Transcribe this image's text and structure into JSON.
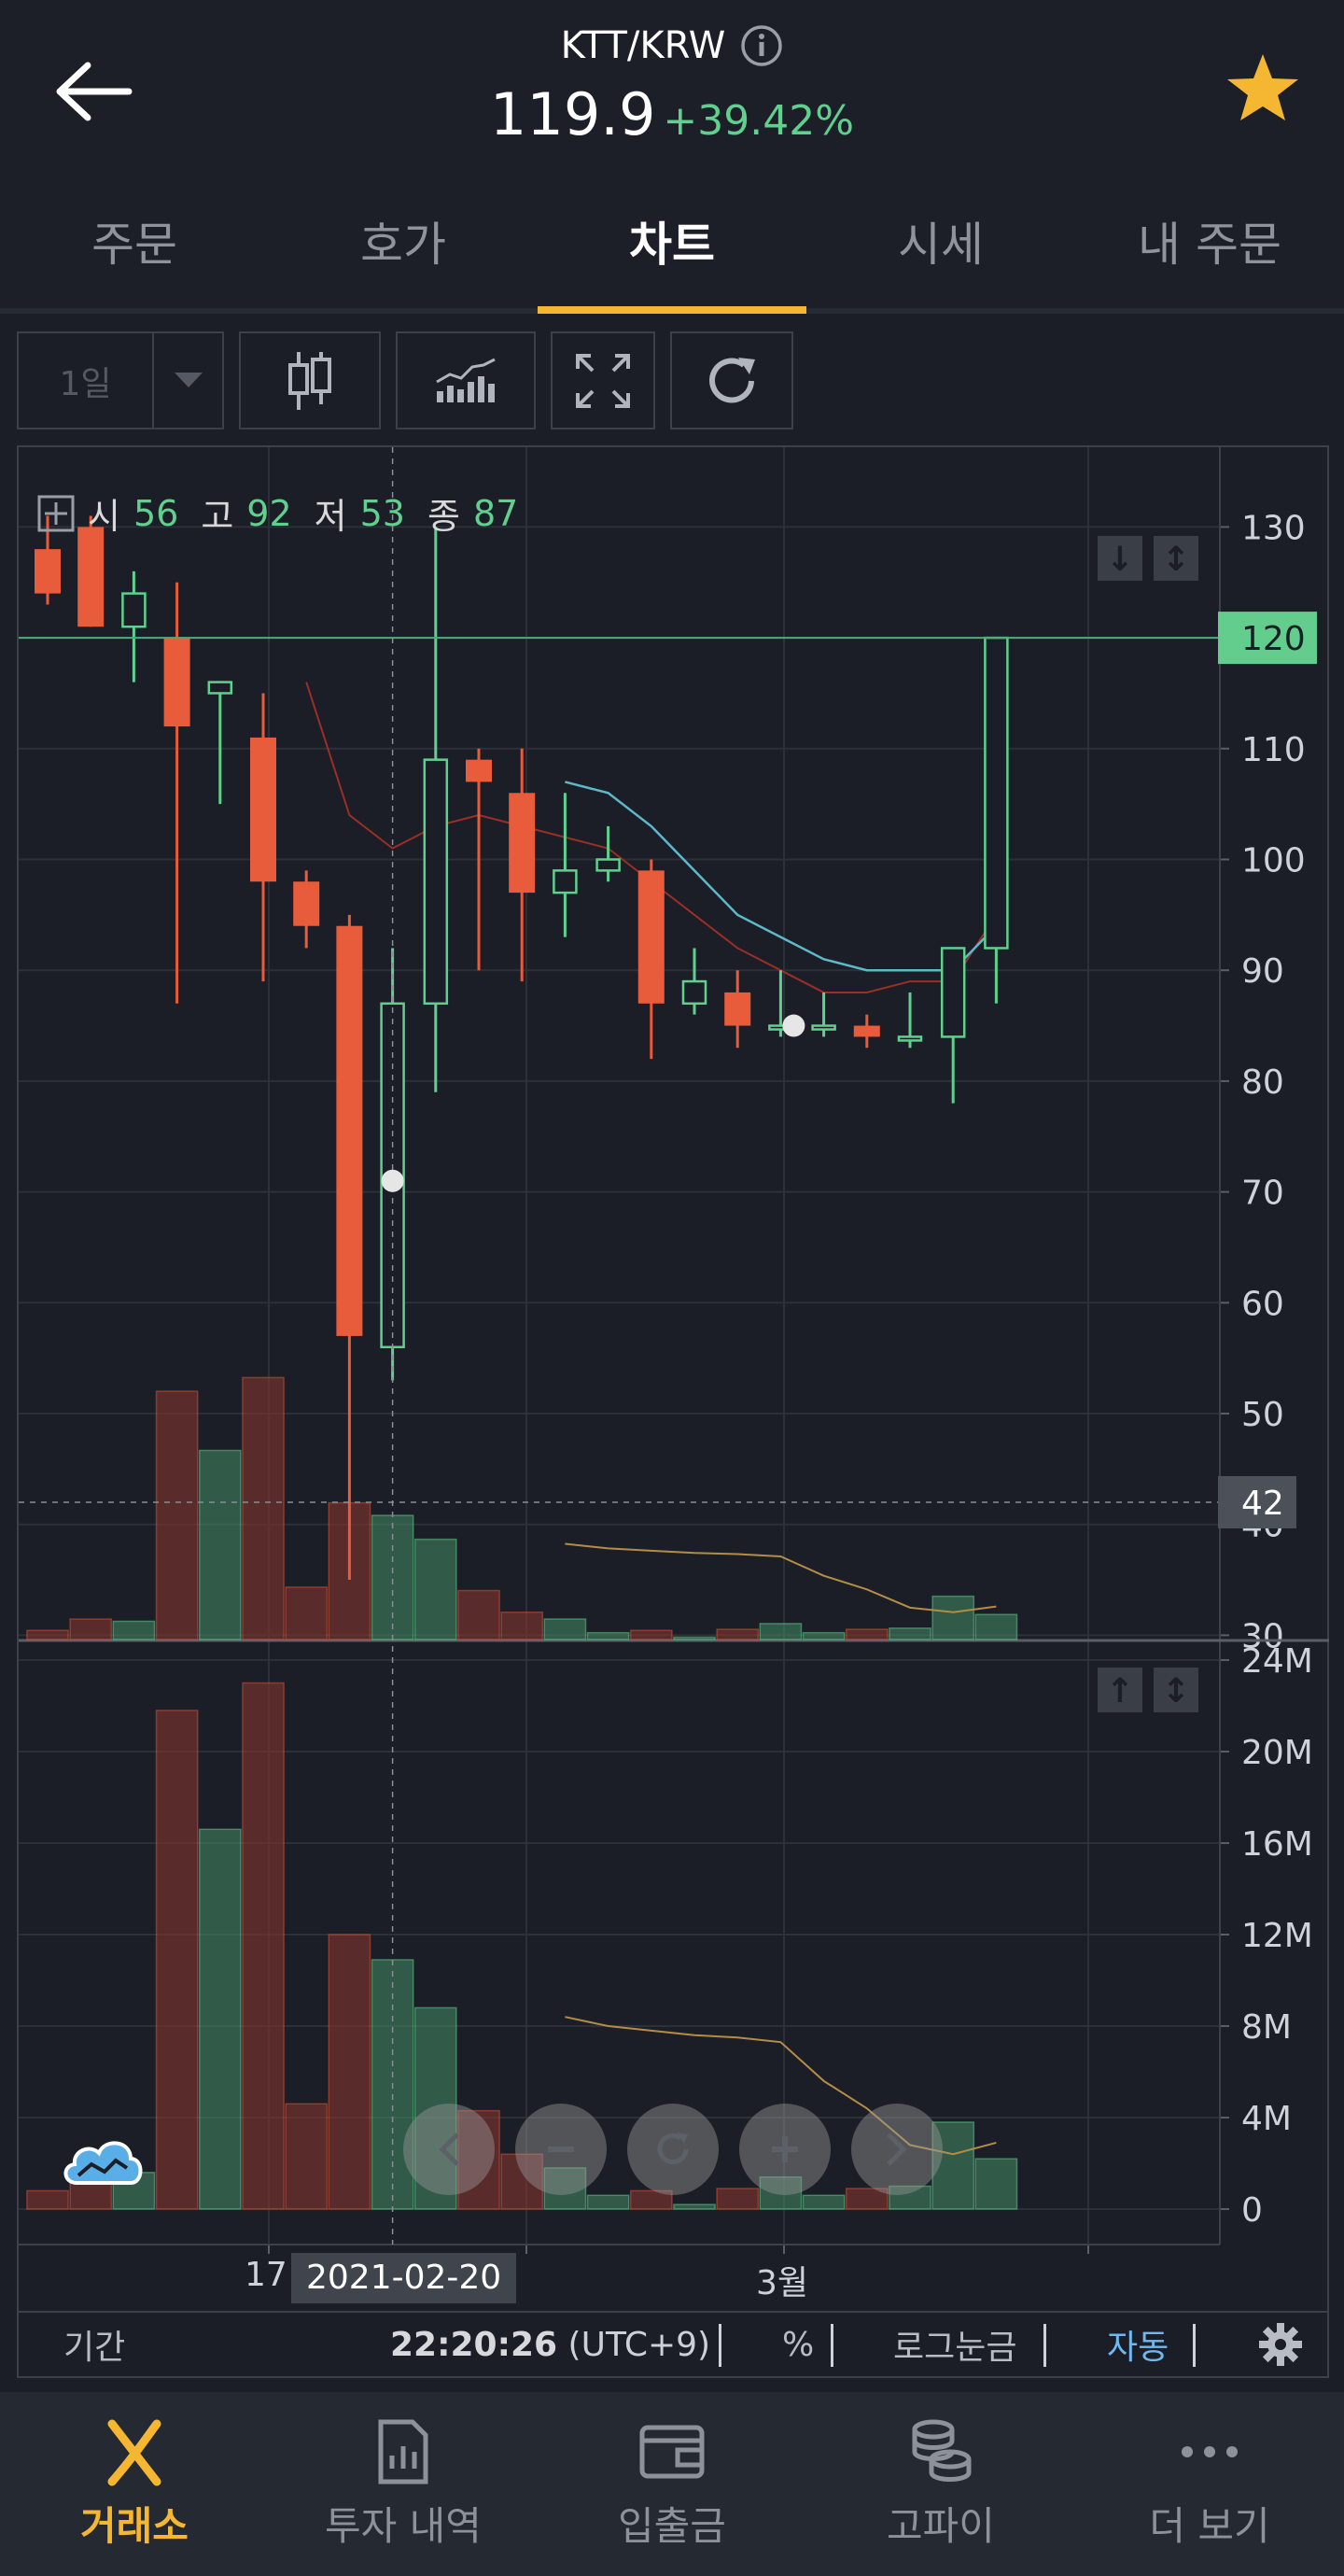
{
  "header": {
    "pair": "KTT/KRW",
    "price": "119.9",
    "change": "+39.42%"
  },
  "tabs": [
    {
      "label": "주문",
      "active": false
    },
    {
      "label": "호가",
      "active": false
    },
    {
      "label": "차트",
      "active": true
    },
    {
      "label": "시세",
      "active": false
    },
    {
      "label": "내 주문",
      "active": false
    }
  ],
  "toolbar": {
    "period": "1일",
    "icons": [
      "candlestick-icon",
      "indicator-icon",
      "fullscreen-icon",
      "refresh-icon"
    ]
  },
  "ohlc": {
    "open_label": "시",
    "open": "56",
    "high_label": "고",
    "high": "92",
    "low_label": "저",
    "low": "53",
    "close_label": "종",
    "close": "87"
  },
  "chart_data": {
    "type": "candlestick",
    "price_axis": {
      "ticks": [
        "130",
        "120",
        "110",
        "100",
        "90",
        "80",
        "70",
        "60",
        "50",
        "40",
        "30"
      ],
      "current_price_label": "120",
      "crosshair_label": "42"
    },
    "volume_axis": {
      "ticks": [
        "24M",
        "20M",
        "16M",
        "12M",
        "8M",
        "4M",
        "0"
      ]
    },
    "x_labels": [
      "17",
      "2021-02-20",
      "3월"
    ],
    "candles": [
      {
        "o": 128,
        "h": 131,
        "l": 123,
        "c": 124
      },
      {
        "o": 130,
        "h": 131,
        "l": 121,
        "c": 121
      },
      {
        "o": 121,
        "h": 126,
        "l": 116,
        "c": 124
      },
      {
        "o": 120,
        "h": 125,
        "l": 87,
        "c": 112
      },
      {
        "o": 115,
        "h": 116,
        "l": 105,
        "c": 116
      },
      {
        "o": 111,
        "h": 115,
        "l": 89,
        "c": 98
      },
      {
        "o": 98,
        "h": 99,
        "l": 92,
        "c": 94
      },
      {
        "o": 94,
        "h": 95,
        "l": 35,
        "c": 57
      },
      {
        "o": 56,
        "h": 92,
        "l": 53,
        "c": 87
      },
      {
        "o": 87,
        "h": 130,
        "l": 79,
        "c": 109
      },
      {
        "o": 109,
        "h": 110,
        "l": 90,
        "c": 107
      },
      {
        "o": 106,
        "h": 110,
        "l": 89,
        "c": 97
      },
      {
        "o": 97,
        "h": 106,
        "l": 93,
        "c": 99
      },
      {
        "o": 99,
        "h": 103,
        "l": 98,
        "c": 100
      },
      {
        "o": 99,
        "h": 100,
        "l": 82,
        "c": 87
      },
      {
        "o": 87,
        "h": 92,
        "l": 86,
        "c": 89
      },
      {
        "o": 88,
        "h": 90,
        "l": 83,
        "c": 85
      },
      {
        "o": 85,
        "h": 90,
        "l": 84,
        "c": 85
      },
      {
        "o": 85,
        "h": 88,
        "l": 84,
        "c": 85
      },
      {
        "o": 85,
        "h": 86,
        "l": 83,
        "c": 84
      },
      {
        "o": 84,
        "h": 88,
        "l": 83,
        "c": 84
      },
      {
        "o": 84,
        "h": 92,
        "l": 78,
        "c": 92
      },
      {
        "o": 92,
        "h": 120,
        "l": 87,
        "c": 120
      }
    ],
    "volumes_M": [
      0.8,
      1.8,
      1.6,
      21.8,
      16.6,
      23.0,
      4.6,
      12.0,
      10.9,
      8.8,
      4.3,
      2.4,
      1.8,
      0.6,
      0.8,
      0.2,
      0.9,
      1.4,
      0.6,
      0.9,
      1.0,
      3.8,
      2.2
    ],
    "ma_short": [
      null,
      null,
      null,
      null,
      null,
      null,
      116,
      104,
      101,
      103,
      104,
      103,
      102,
      101,
      98,
      95,
      92,
      90,
      88,
      88,
      89,
      89,
      95
    ],
    "ma_long": [
      null,
      null,
      null,
      null,
      null,
      null,
      null,
      null,
      null,
      null,
      null,
      null,
      107,
      106,
      103,
      99,
      95,
      93,
      91,
      90,
      90,
      90,
      94
    ],
    "volume_ma_M": [
      null,
      null,
      null,
      null,
      null,
      null,
      null,
      null,
      null,
      null,
      null,
      null,
      8.4,
      8.0,
      7.8,
      7.6,
      7.5,
      7.3,
      5.6,
      4.4,
      2.8,
      2.4,
      2.9
    ],
    "colors": {
      "up": "#5fd08e",
      "down": "#e85c3c",
      "ma_short": "#9b2e26",
      "ma_long": "#5db8c9",
      "volume_ma": "#b38d48"
    }
  },
  "footer": {
    "period_label": "기간",
    "time": "22:20:26",
    "tz": "(UTC+9)",
    "percent": "%",
    "log_scale": "로그눈금",
    "auto": "자동"
  },
  "bottom_nav": [
    {
      "label": "거래소",
      "icon": "exchange-x-icon",
      "active": true
    },
    {
      "label": "투자 내역",
      "icon": "report-icon",
      "active": false
    },
    {
      "label": "입출금",
      "icon": "wallet-icon",
      "active": false
    },
    {
      "label": "고파이",
      "icon": "coins-icon",
      "active": false
    },
    {
      "label": "더 보기",
      "icon": "more-icon",
      "active": false
    }
  ]
}
